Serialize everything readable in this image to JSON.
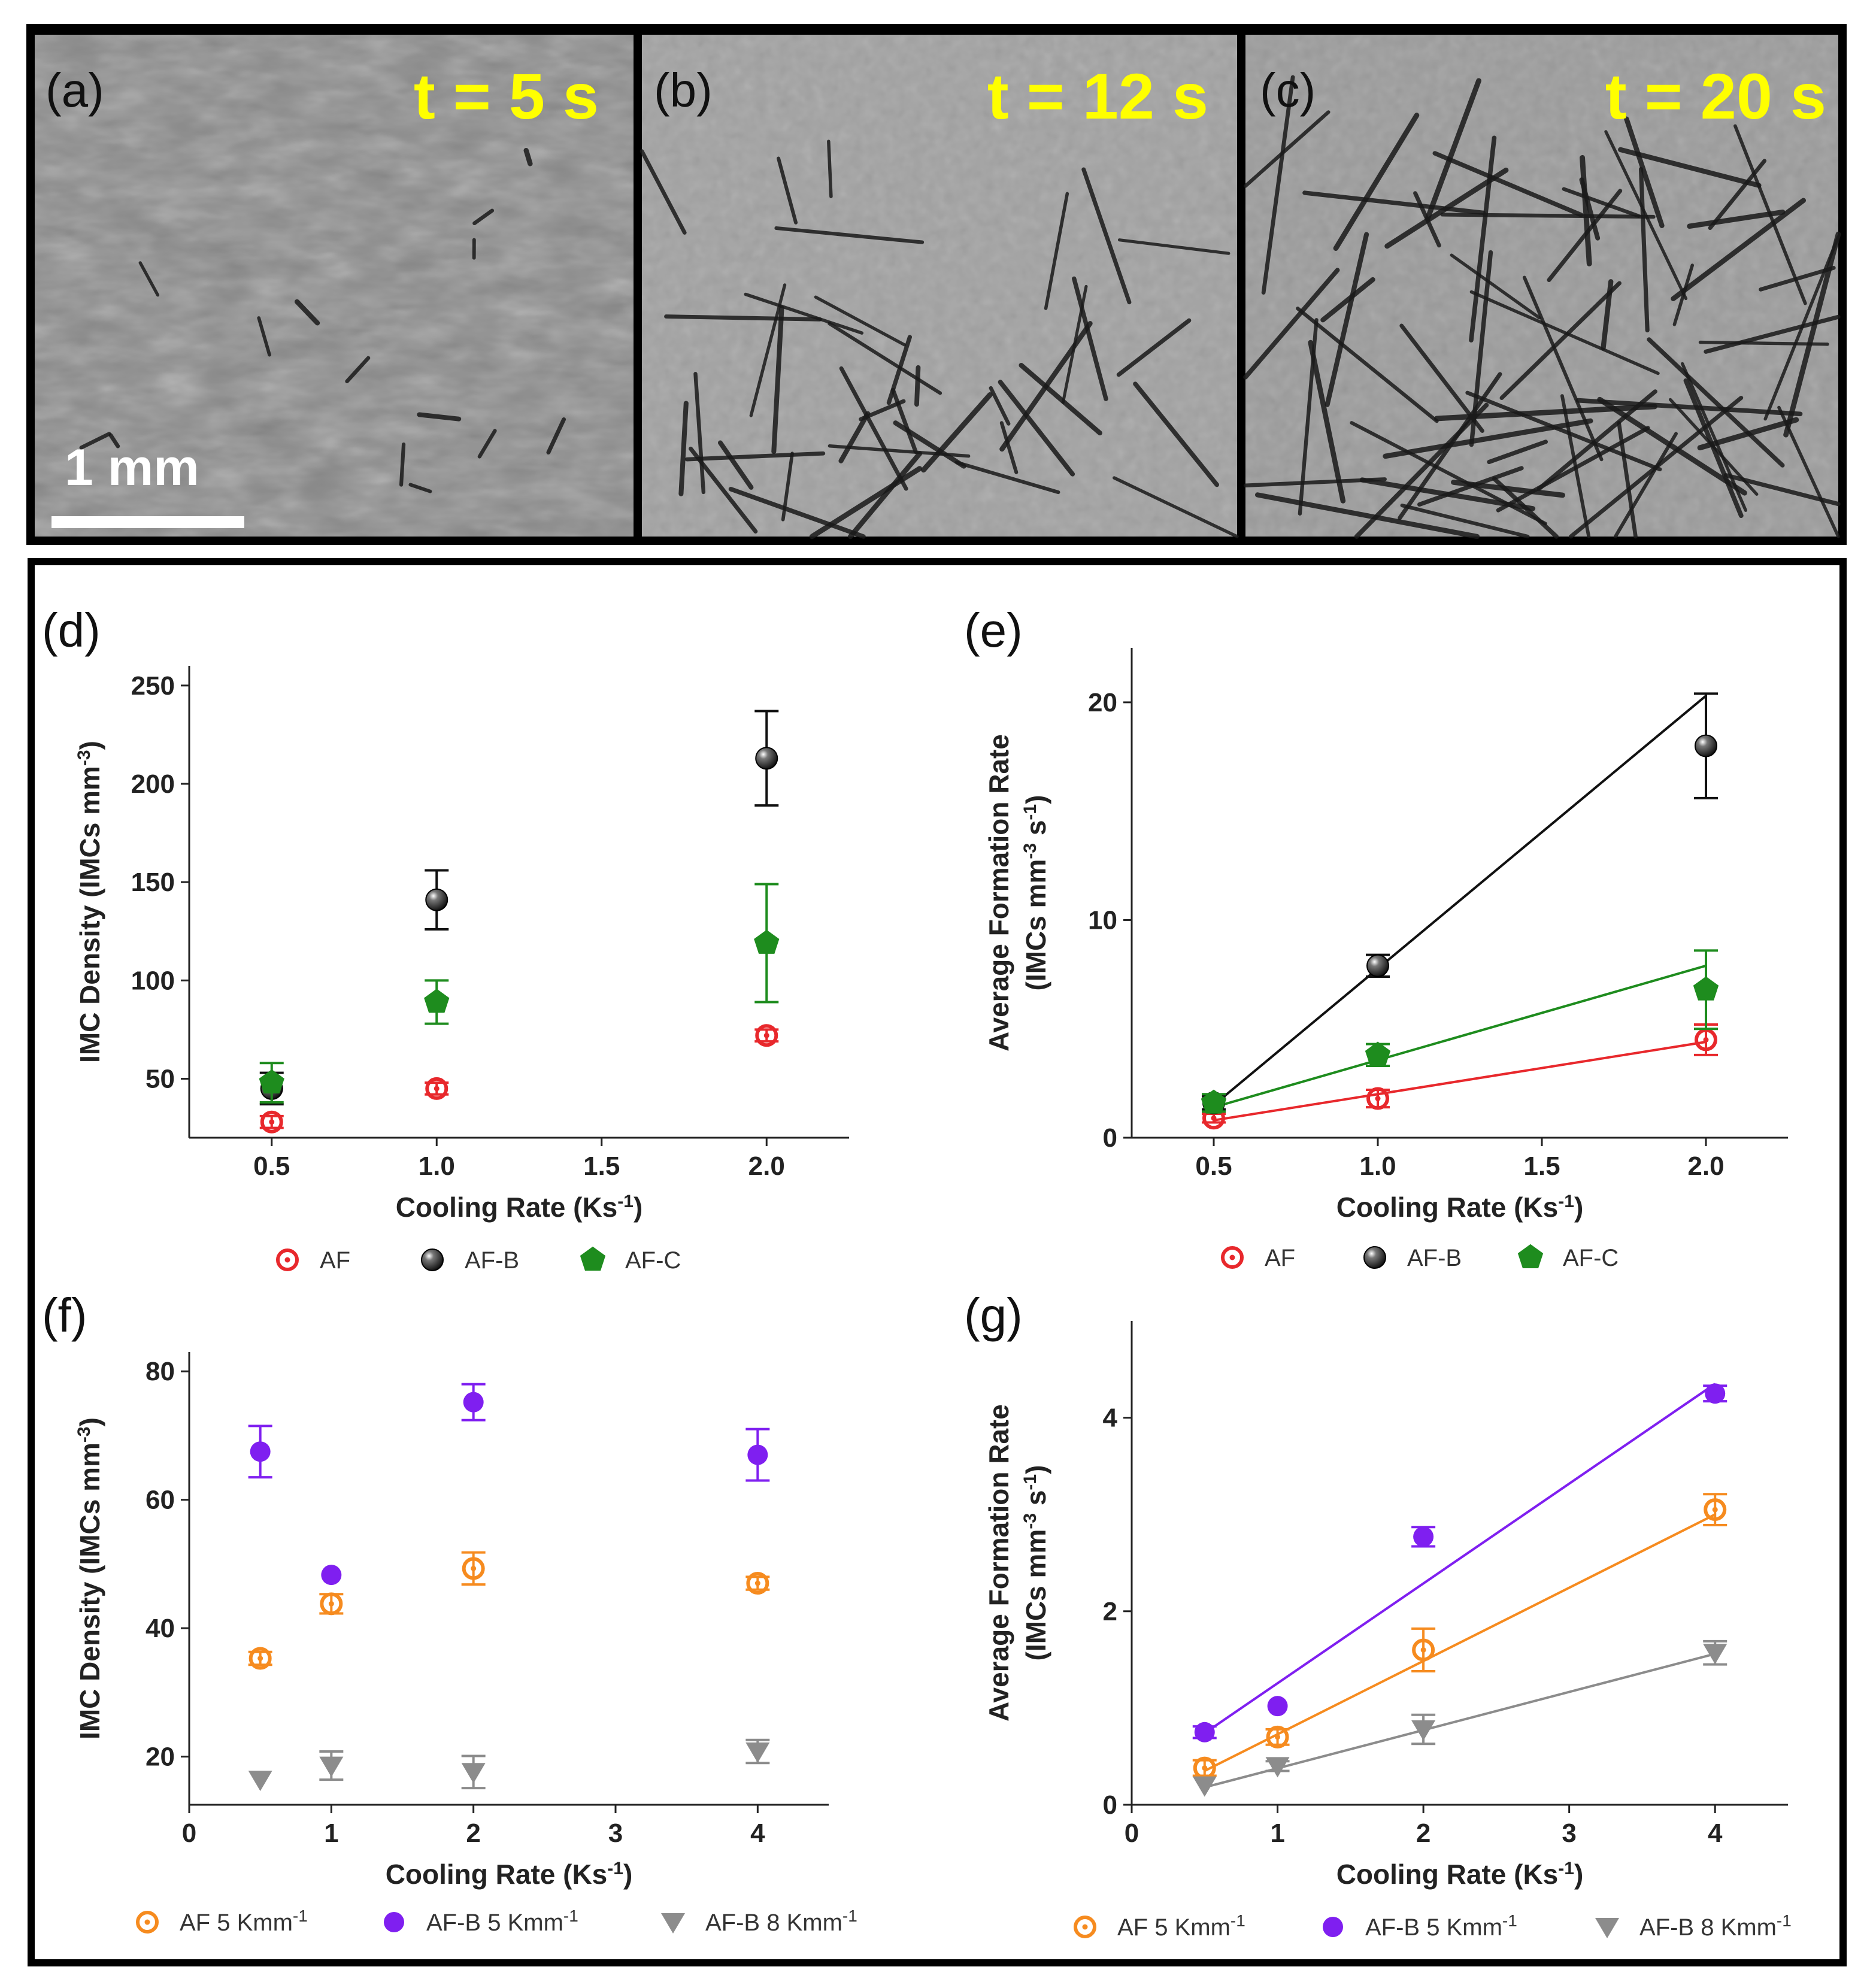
{
  "micrographs": {
    "scale_bar_label": "1 mm",
    "panels": [
      {
        "label": "(a)",
        "time": "t = 5 s",
        "needle_count": 14
      },
      {
        "label": "(b)",
        "time": "t = 12 s",
        "needle_count": 42
      },
      {
        "label": "(c)",
        "time": "t = 20 s",
        "needle_count": 70
      }
    ]
  },
  "colors": {
    "AF": "#e8282c",
    "AF-B": "#111111",
    "AF-C": "#1e8c1e",
    "AF 5 Kmm-1": "#f68b1f",
    "AF-B 5 Kmm-1": "#7f1ff0",
    "AF-B 8 Kmm-1": "#8c8c8c"
  },
  "chart_data": [
    {
      "id": "d",
      "label": "(d)",
      "type": "scatter",
      "xlabel": "Cooling Rate (Ks",
      "xlabel_sup": "-1",
      "xlabel_end": ")",
      "ylabel": "IMC Density (IMCs mm",
      "ylabel_sup": "-3",
      "ylabel_end": ")",
      "xlim": [
        0.25,
        2.25
      ],
      "ylim": [
        20,
        260
      ],
      "xticks": [
        0.5,
        1.0,
        1.5,
        2.0
      ],
      "xtick_labels": [
        "0.5",
        "1.0",
        "1.5",
        "2.0"
      ],
      "yticks": [
        50,
        100,
        150,
        200,
        250
      ],
      "ytick_labels": [
        "50",
        "100",
        "150",
        "200",
        "250"
      ],
      "series": [
        {
          "name": "AF",
          "marker": "ring",
          "x": [
            0.5,
            1.0,
            2.0
          ],
          "y": [
            28,
            45,
            72
          ],
          "err": [
            3,
            3,
            3
          ]
        },
        {
          "name": "AF-B",
          "marker": "ball",
          "x": [
            0.5,
            1.0,
            2.0
          ],
          "y": [
            45,
            141,
            213
          ],
          "err": [
            8,
            15,
            24
          ]
        },
        {
          "name": "AF-C",
          "marker": "pentagon",
          "x": [
            0.5,
            1.0,
            2.0
          ],
          "y": [
            48,
            89,
            119
          ],
          "err": [
            10,
            11,
            30
          ]
        }
      ],
      "legend": [
        "AF",
        "AF-B",
        "AF-C"
      ]
    },
    {
      "id": "e",
      "label": "(e)",
      "type": "scatter",
      "xlabel": "Cooling Rate (Ks",
      "xlabel_sup": "-1",
      "xlabel_end": ")",
      "ylabel": "Average Formation Rate",
      "ylabel2": "(IMCs mm",
      "ylabel2_sup": "-3",
      "ylabel2_mid": " s",
      "ylabel2_sup2": "-1",
      "ylabel2_end": ")",
      "xlim": [
        0.25,
        2.25
      ],
      "ylim": [
        0,
        22.5
      ],
      "xticks": [
        0.5,
        1.0,
        1.5,
        2.0
      ],
      "xtick_labels": [
        "0.5",
        "1.0",
        "1.5",
        "2.0"
      ],
      "yticks": [
        0,
        10,
        20
      ],
      "ytick_labels": [
        "0",
        "10",
        "20"
      ],
      "series": [
        {
          "name": "AF",
          "marker": "ring",
          "x": [
            0.5,
            1.0,
            2.0
          ],
          "y": [
            0.9,
            1.8,
            4.5
          ],
          "err": [
            0.2,
            0.4,
            0.7
          ],
          "fit": [
            [
              0.5,
              0.8
            ],
            [
              2.0,
              4.4
            ]
          ]
        },
        {
          "name": "AF-B",
          "marker": "ball",
          "x": [
            0.5,
            1.0,
            2.0
          ],
          "y": [
            1.6,
            7.9,
            18.0
          ],
          "err": [
            0.3,
            0.5,
            2.4
          ],
          "fit": [
            [
              0.5,
              1.5
            ],
            [
              2.0,
              20.3
            ]
          ]
        },
        {
          "name": "AF-C",
          "marker": "pentagon",
          "x": [
            0.5,
            1.0,
            2.0
          ],
          "y": [
            1.6,
            3.8,
            6.8
          ],
          "err": [
            0.4,
            0.5,
            1.8
          ],
          "fit": [
            [
              0.5,
              1.4
            ],
            [
              2.0,
              7.9
            ]
          ]
        }
      ],
      "legend": [
        "AF",
        "AF-B",
        "AF-C"
      ]
    },
    {
      "id": "f",
      "label": "(f)",
      "type": "scatter",
      "xlabel": "Cooling Rate (Ks",
      "xlabel_sup": "-1",
      "xlabel_end": ")",
      "ylabel": "IMC Density (IMCs mm",
      "ylabel_sup": "-3",
      "ylabel_end": ")",
      "xlim": [
        0,
        4.5
      ],
      "ylim": [
        12.5,
        83
      ],
      "xticks": [
        0,
        1,
        2,
        3,
        4
      ],
      "xtick_labels": [
        "0",
        "1",
        "2",
        "3",
        "4"
      ],
      "yticks": [
        20,
        40,
        60,
        80
      ],
      "ytick_labels": [
        "20",
        "40",
        "60",
        "80"
      ],
      "series": [
        {
          "name": "AF 5 Kmm-1",
          "marker": "ring",
          "x": [
            0.5,
            1,
            2,
            4
          ],
          "y": [
            35.3,
            43.8,
            49.3,
            47.0
          ],
          "err": [
            1.0,
            1.5,
            2.5,
            1.0
          ]
        },
        {
          "name": "AF-B 5 Kmm-1",
          "marker": "dot",
          "x": [
            0.5,
            1,
            2,
            4
          ],
          "y": [
            67.5,
            48.3,
            75.2,
            67.0
          ],
          "err": [
            4.0,
            0,
            2.8,
            4.0
          ]
        },
        {
          "name": "AF-B 8 Kmm-1",
          "marker": "triangle",
          "x": [
            0.5,
            1,
            2,
            4
          ],
          "y": [
            16.4,
            18.6,
            17.6,
            20.8
          ],
          "err": [
            0,
            2.2,
            2.5,
            1.8
          ]
        }
      ],
      "legend": [
        "AF 5 Kmm",
        "AF-B 5 Kmm",
        "AF-B 8 Kmm"
      ],
      "legend_sup": "-1"
    },
    {
      "id": "g",
      "label": "(g)",
      "type": "scatter",
      "xlabel": "Cooling Rate (Ks",
      "xlabel_sup": "-1",
      "xlabel_end": ")",
      "ylabel": "Average Formation Rate",
      "ylabel2": "(IMCs mm",
      "ylabel2_sup": "-3",
      "ylabel2_mid": " s",
      "ylabel2_sup2": "-1",
      "ylabel2_end": ")",
      "xlim": [
        0,
        4.5
      ],
      "ylim": [
        0,
        5.0
      ],
      "xticks": [
        0,
        1,
        2,
        3,
        4
      ],
      "xtick_labels": [
        "0",
        "1",
        "2",
        "3",
        "4"
      ],
      "yticks": [
        0,
        2,
        4
      ],
      "ytick_labels": [
        "0",
        "2",
        "4"
      ],
      "series": [
        {
          "name": "AF 5 Kmm-1",
          "marker": "ring",
          "x": [
            0.5,
            1,
            2,
            4
          ],
          "y": [
            0.38,
            0.7,
            1.6,
            3.05
          ],
          "err": [
            0.08,
            0.08,
            0.22,
            0.16
          ],
          "fit": [
            [
              0.5,
              0.35
            ],
            [
              4.0,
              3.0
            ]
          ]
        },
        {
          "name": "AF-B 5 Kmm-1",
          "marker": "dot",
          "x": [
            0.5,
            1,
            2,
            4
          ],
          "y": [
            0.75,
            1.02,
            2.77,
            4.25
          ],
          "err": [
            0.06,
            0,
            0.1,
            0.08
          ],
          "fit": [
            [
              0.5,
              0.74
            ],
            [
              4.0,
              4.35
            ]
          ]
        },
        {
          "name": "AF-B 8 Kmm-1",
          "marker": "triangle",
          "x": [
            0.5,
            1,
            2,
            4
          ],
          "y": [
            0.2,
            0.4,
            0.78,
            1.57
          ],
          "err": [
            0,
            0.05,
            0.15,
            0.12
          ],
          "fit": [
            [
              0.5,
              0.18
            ],
            [
              4.0,
              1.56
            ]
          ]
        }
      ],
      "legend": [
        "AF 5 Kmm",
        "AF-B 5 Kmm",
        "AF-B 8 Kmm"
      ],
      "legend_sup": "-1"
    }
  ]
}
